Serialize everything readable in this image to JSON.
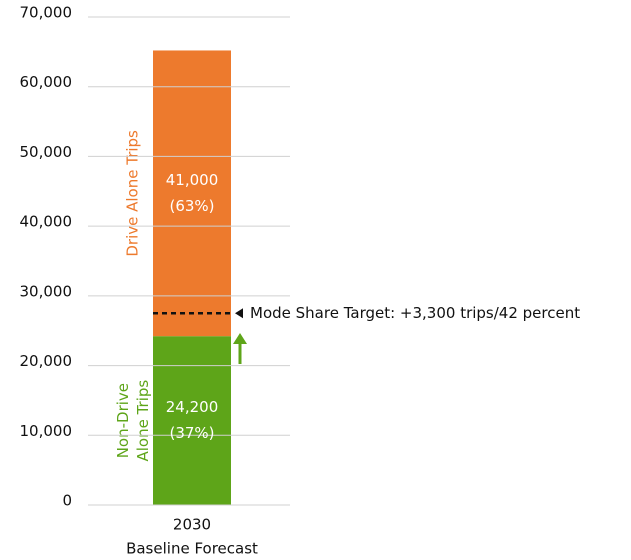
{
  "chart_data": {
    "type": "stacked_bar",
    "categories": [
      "2030"
    ],
    "xlabel": "Baseline Forecast",
    "series": [
      {
        "name": "Non-Drive Alone Trips",
        "color": "#5ea519",
        "values": [
          24200
        ],
        "value_labels": [
          "24,200"
        ],
        "share_labels": [
          "(37%)"
        ]
      },
      {
        "name": "Drive Alone Trips",
        "color": "#ed7a2d",
        "values": [
          41000
        ],
        "value_labels": [
          "41,000"
        ],
        "share_labels": [
          "(63%)"
        ]
      }
    ],
    "ylim": [
      0,
      70000
    ],
    "yticks": [
      {
        "value": 0,
        "label": "0"
      },
      {
        "value": 10000,
        "label": "10,000"
      },
      {
        "value": 20000,
        "label": "20,000"
      },
      {
        "value": 30000,
        "label": "30,000"
      },
      {
        "value": 40000,
        "label": "40,000"
      },
      {
        "value": 50000,
        "label": "50,000"
      },
      {
        "value": 60000,
        "label": "60,000"
      },
      {
        "value": 70000,
        "label": "70,000"
      }
    ],
    "grid": true,
    "target": {
      "value": 27500,
      "label": "Mode Share Target: +3,300 trips/42 percent"
    }
  }
}
